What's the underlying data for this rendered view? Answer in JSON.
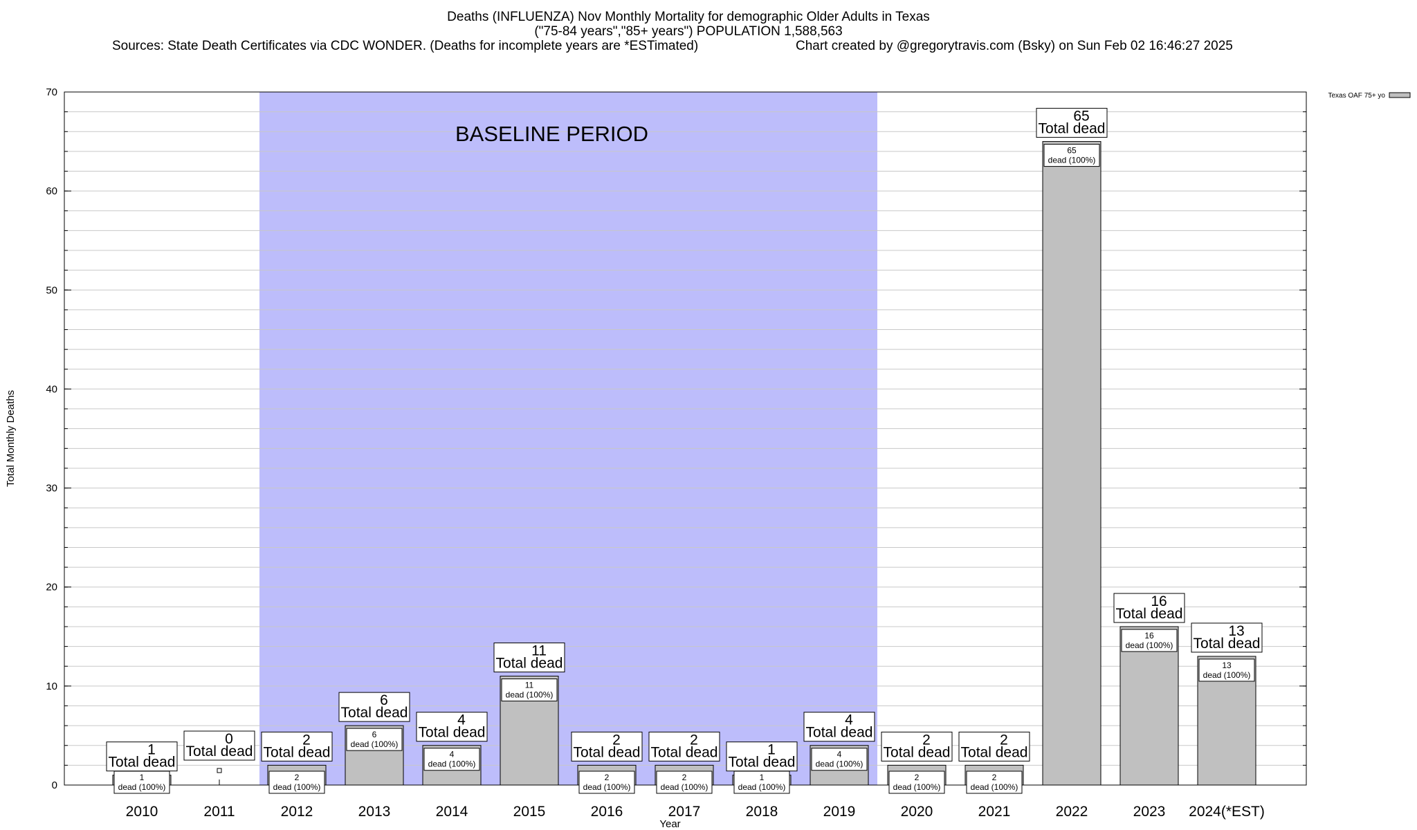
{
  "header": {
    "title_line1": "Deaths (INFLUENZA) Nov Monthly Mortality for demographic Older Adults in Texas",
    "title_line2": "(\"75-84 years\",\"85+ years\") POPULATION 1,588,563",
    "sources": "Sources: State Death Certificates via CDC WONDER. (Deaths for incomplete years are *ESTimated)",
    "credit": "Chart created by @gregorytravis.com (Bsky) on Sun Feb 02 16:46:27 2025"
  },
  "chart_data": {
    "type": "bar",
    "xlabel": "Year",
    "ylabel": "Total Monthly Deaths",
    "ylim": [
      0,
      70
    ],
    "y_major_ticks": [
      0,
      10,
      20,
      30,
      40,
      50,
      60,
      70
    ],
    "y_minor_step": 2,
    "grid": true,
    "categories": [
      "2010",
      "2011",
      "2012",
      "2013",
      "2014",
      "2015",
      "2016",
      "2017",
      "2018",
      "2019",
      "2020",
      "2021",
      "2022",
      "2023",
      "2024(*EST)"
    ],
    "series": [
      {
        "name": "Texas OAF 75+ yo",
        "values": [
          1,
          0,
          2,
          6,
          4,
          11,
          2,
          2,
          1,
          4,
          2,
          2,
          65,
          16,
          13
        ]
      }
    ],
    "total_label_suffix": "Total dead",
    "inner_label_suffix": "dead (100%)",
    "baseline_period": {
      "label": "BASELINE PERIOD",
      "from": "2012",
      "to": "2019"
    },
    "legend_position": "top-right",
    "colors": {
      "bar": "#c0c0c0",
      "baseline_shade": "#bdbdfb",
      "grid": "#c8c8c8"
    }
  }
}
